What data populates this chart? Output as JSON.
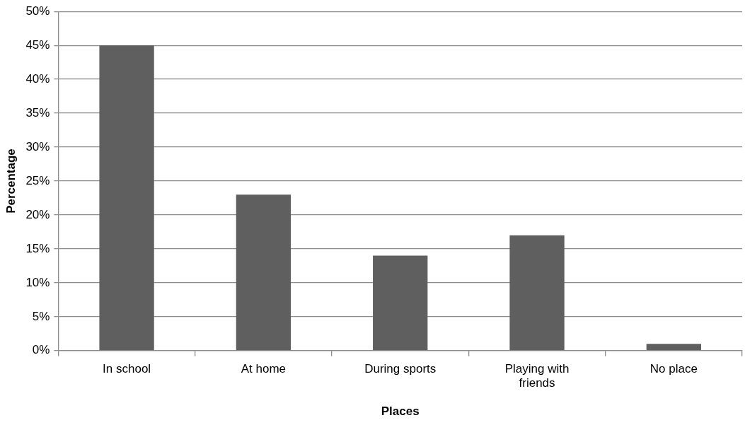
{
  "chart_data": {
    "type": "bar",
    "xlabel": "Places",
    "ylabel": "Percentage",
    "categories": [
      "In school",
      "At home",
      "During sports",
      "Playing with friends",
      "No place"
    ],
    "values": [
      45,
      23,
      14,
      17,
      1
    ],
    "color": "#5f5f5f",
    "ylim": [
      0,
      50
    ],
    "yticks": [
      {
        "value": 0,
        "label": "0%"
      },
      {
        "value": 5,
        "label": "5%"
      },
      {
        "value": 10,
        "label": "10%"
      },
      {
        "value": 15,
        "label": "15%"
      },
      {
        "value": 20,
        "label": "20%"
      },
      {
        "value": 25,
        "label": "25%"
      },
      {
        "value": 30,
        "label": "30%"
      },
      {
        "value": 35,
        "label": "35%"
      },
      {
        "value": 40,
        "label": "40%"
      },
      {
        "value": 45,
        "label": "45%"
      },
      {
        "value": 50,
        "label": "50%"
      }
    ],
    "grid": "y",
    "legend": false
  }
}
